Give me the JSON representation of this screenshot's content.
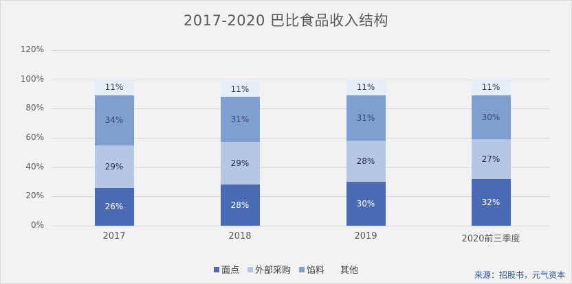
{
  "chart_data": {
    "type": "bar",
    "stacked": true,
    "title": "2017-2020 巴比食品收入结构",
    "xlabel": "",
    "ylabel": "",
    "ylim": [
      0,
      120
    ],
    "yticks": [
      "0%",
      "20%",
      "40%",
      "60%",
      "80%",
      "100%",
      "120%"
    ],
    "categories": [
      "2017",
      "2018",
      "2019",
      "2020前三季度"
    ],
    "series": [
      {
        "name": "面点",
        "color": "#4a6bb4",
        "label_color": "#ffffff",
        "values": [
          26,
          28,
          30,
          32
        ]
      },
      {
        "name": "外部采购",
        "color": "#b6c6e5",
        "label_color": "#1f2a44",
        "values": [
          29,
          29,
          28,
          27
        ]
      },
      {
        "name": "馅料",
        "color": "#7f9fd1",
        "label_color": "#3a4a73",
        "values": [
          34,
          31,
          31,
          30
        ]
      },
      {
        "name": "其他",
        "color": "#e6eefa",
        "label_color": "#404040",
        "values": [
          11,
          11,
          11,
          11
        ]
      }
    ],
    "grid": true,
    "legend_position": "bottom",
    "source": "来源：招股书，元气资本"
  }
}
